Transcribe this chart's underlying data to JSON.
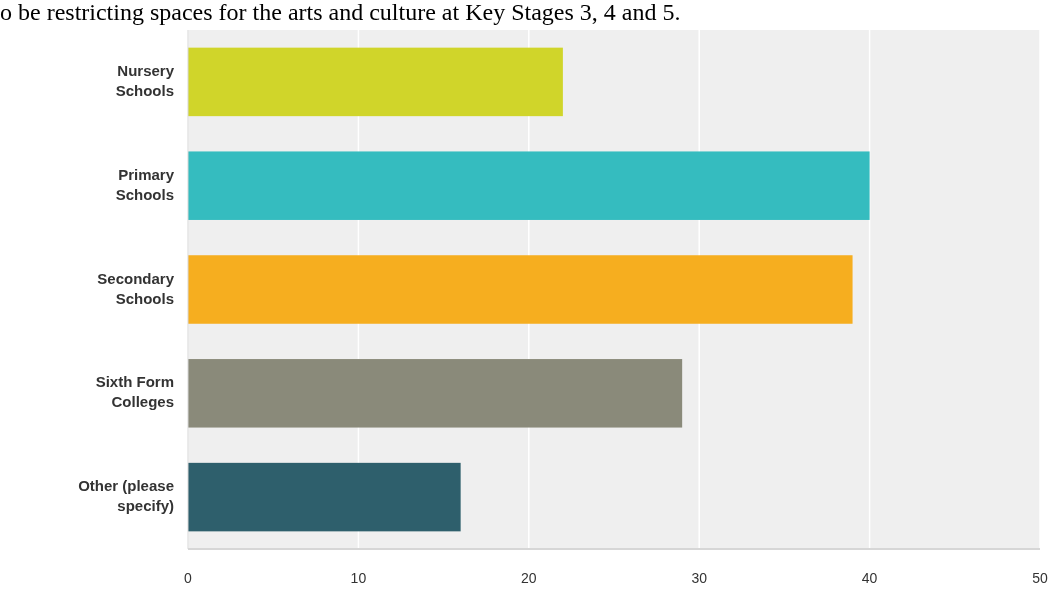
{
  "chart_data": {
    "type": "bar",
    "orientation": "horizontal",
    "title": "o be restricting spaces for the arts and culture at Key Stages 3, 4 and 5.",
    "categories": [
      "Nursery Schools",
      "Primary Schools",
      "Secondary Schools",
      "Sixth Form Colleges",
      "Other (please specify)"
    ],
    "values": [
      22,
      40,
      39,
      29,
      16
    ],
    "colors": [
      "#d0d52a",
      "#35bcbf",
      "#f6ae1f",
      "#8a8a7a",
      "#2e5f6c"
    ],
    "xlim": [
      0,
      50
    ],
    "xticks": [
      0,
      10,
      20,
      30,
      40,
      50
    ],
    "grid": "x"
  }
}
